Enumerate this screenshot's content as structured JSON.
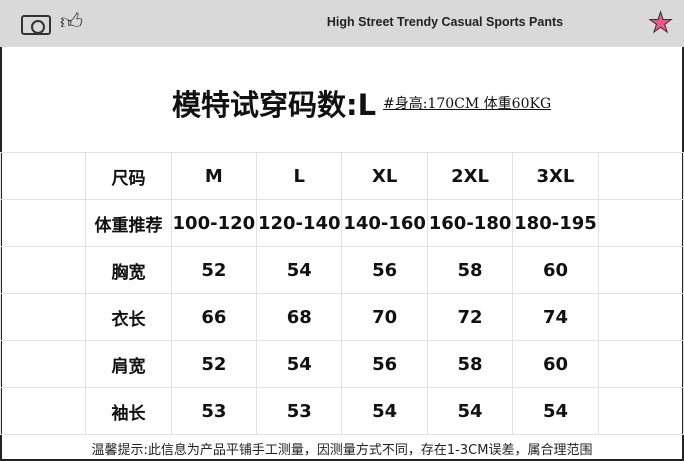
{
  "header": {
    "title": "High Street Trendy Casual Sports Pants",
    "icons": [
      "camera-icon",
      "thumbs-up-icon",
      "star-icon"
    ],
    "star_color": "#e8588a"
  },
  "headline": "模特试穿码数:L",
  "model_info": "#身高:170CM 体重60KG",
  "table": {
    "rows": [
      [
        "尺码",
        "M",
        "L",
        "XL",
        "2XL",
        "3XL"
      ],
      [
        "体重推荐",
        "100-120",
        "120-140",
        "140-160",
        "160-180",
        "180-195"
      ],
      [
        "胸宽",
        "52",
        "54",
        "56",
        "58",
        "60"
      ],
      [
        "衣长",
        "66",
        "68",
        "70",
        "72",
        "74"
      ],
      [
        "肩宽",
        "52",
        "54",
        "56",
        "58",
        "60"
      ],
      [
        "袖长",
        "53",
        "53",
        "54",
        "54",
        "54"
      ]
    ]
  },
  "note": "温馨提示:此信息为产品平铺手工测量，因测量方式不同，存在1-3CM误差，属合理范围"
}
